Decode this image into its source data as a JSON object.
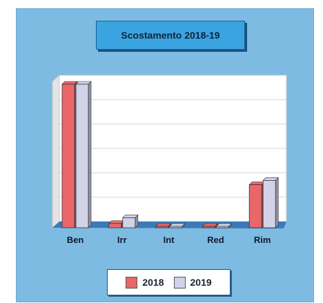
{
  "chart_data": {
    "type": "bar",
    "title": "Scostamento 2018-19",
    "categories": [
      "Ben",
      "Irr",
      "Int",
      "Red",
      "Rim"
    ],
    "series": [
      {
        "name": "2018",
        "values": [
          100,
          3,
          0.5,
          0.8,
          30
        ]
      },
      {
        "name": "2019",
        "values": [
          100,
          7,
          0.3,
          0.2,
          33
        ]
      }
    ],
    "ylim": [
      0,
      100
    ],
    "grid": true,
    "legend": "bottom",
    "colors": {
      "2018": "#e8686a",
      "2019": "#d2d2e8",
      "panel": "#7dbbe2",
      "floor": "#3d79b8"
    }
  }
}
